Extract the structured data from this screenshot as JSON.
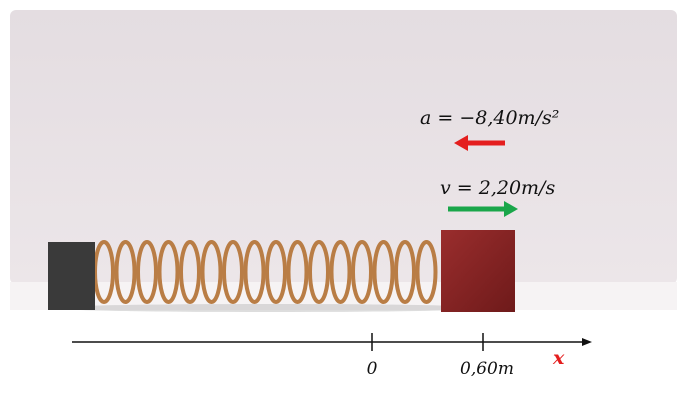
{
  "labels": {
    "acceleration": "a = −8,40m/s²",
    "velocity": "v = 2,20m/s"
  },
  "axis": {
    "label": "x",
    "ticks": [
      "0",
      "0,60m"
    ]
  }
}
